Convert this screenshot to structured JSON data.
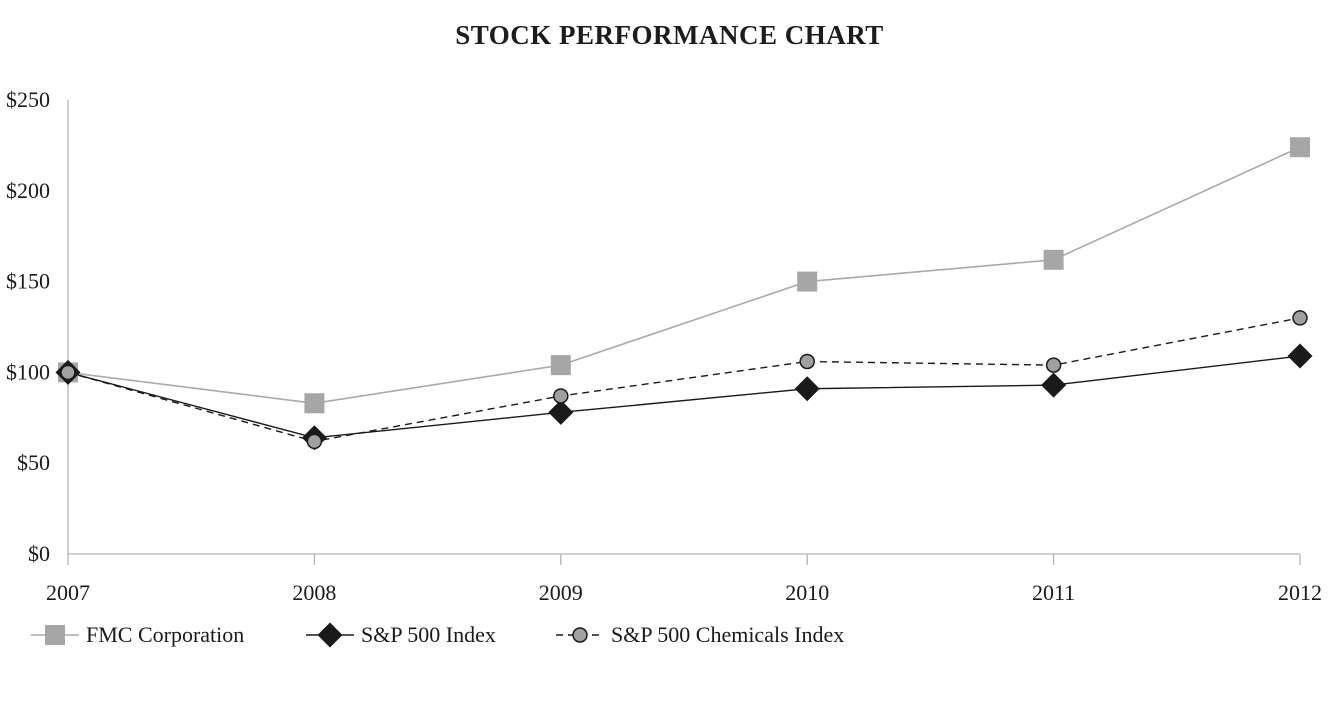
{
  "chart_data": {
    "type": "line",
    "title": "STOCK PERFORMANCE CHART",
    "categories": [
      "2007",
      "2008",
      "2009",
      "2010",
      "2011",
      "2012"
    ],
    "xlabel": "",
    "ylabel": "",
    "ylim": [
      0,
      250
    ],
    "y_tick_step": 50,
    "y_tick_labels": [
      "$0",
      "$50",
      "$100",
      "$150",
      "$200",
      "$250"
    ],
    "grid": false,
    "legend_position": "bottom-left",
    "series": [
      {
        "name": "FMC Corporation",
        "marker": "square",
        "line_style": "solid",
        "marker_color": "#a6a6a6",
        "line_color": "#a9a9a9",
        "values": [
          100,
          83,
          104,
          150,
          162,
          224
        ]
      },
      {
        "name": "S&P 500 Index",
        "marker": "diamond",
        "line_style": "solid",
        "marker_color": "#1a1a1a",
        "line_color": "#1a1a1a",
        "values": [
          100,
          64,
          78,
          91,
          93,
          109
        ]
      },
      {
        "name": "S&P 500 Chemicals Index",
        "marker": "circle",
        "line_style": "dashed",
        "marker_color": "#a0a0a0",
        "line_color": "#1a1a1a",
        "values": [
          100,
          62,
          87,
          106,
          104,
          130
        ]
      }
    ],
    "colors": {
      "axis": "#b3b3b3",
      "text": "#1a1a1a",
      "background": "#ffffff"
    }
  }
}
